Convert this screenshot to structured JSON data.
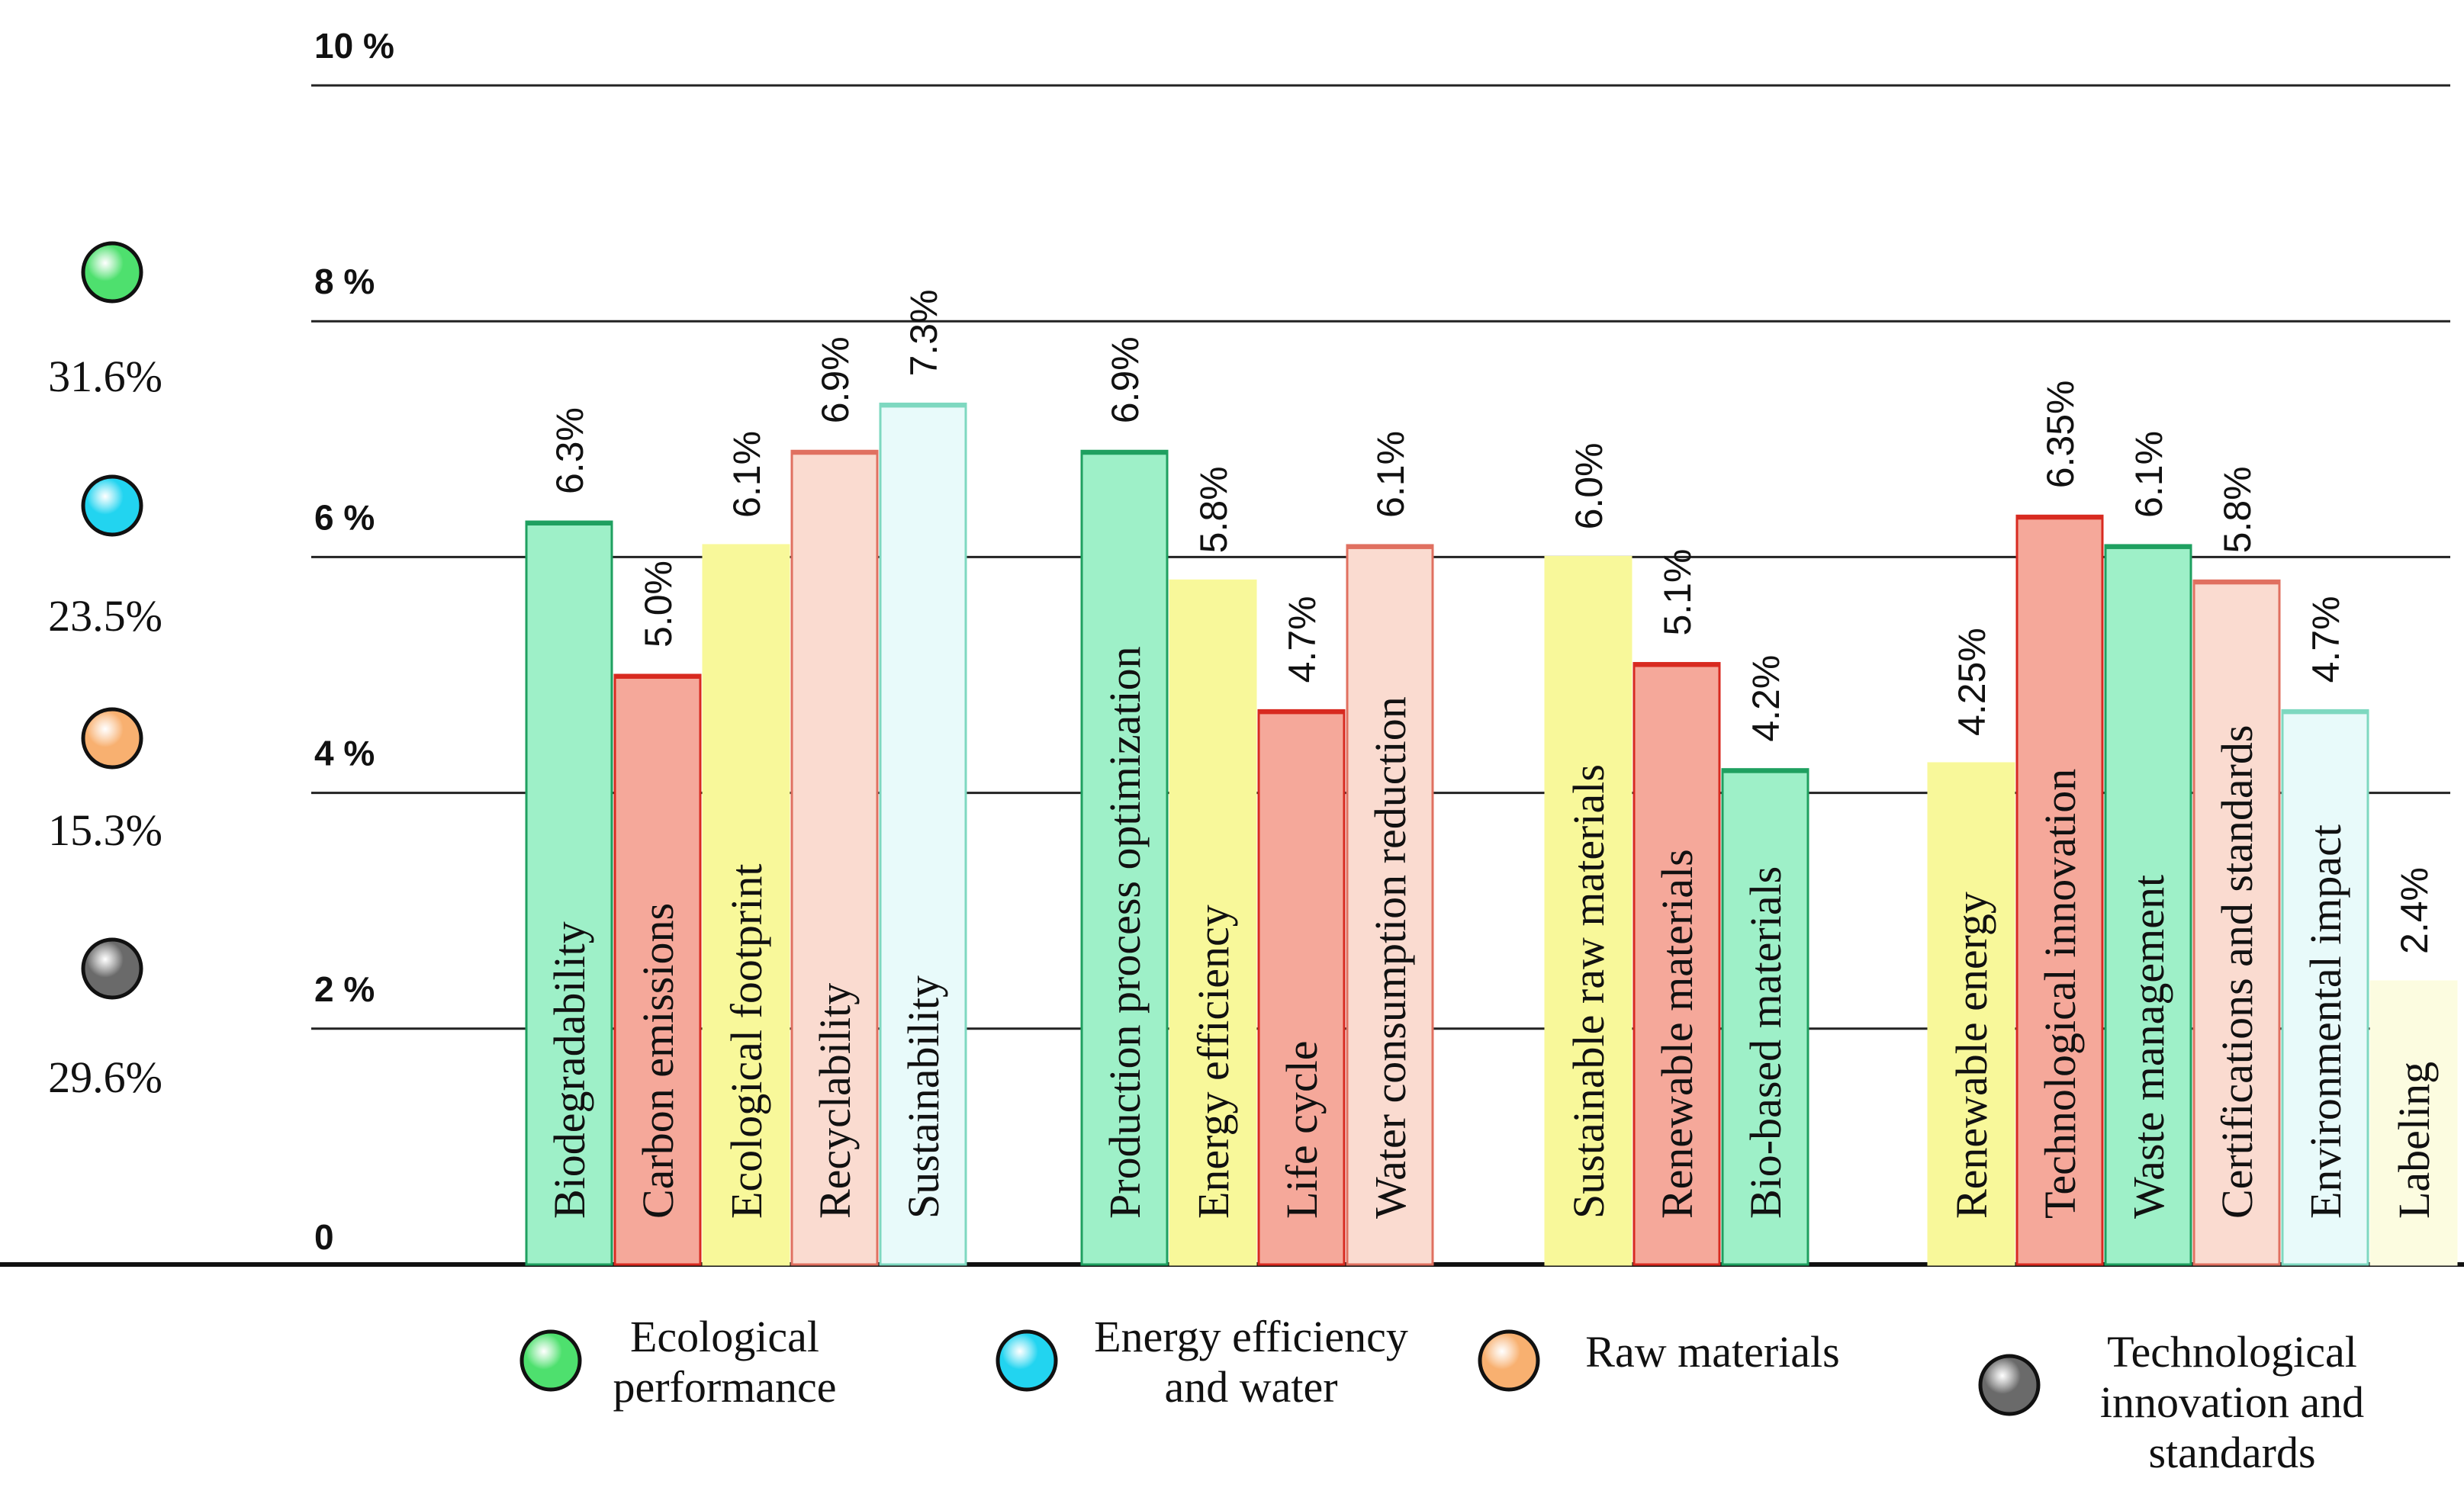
{
  "chart_data": {
    "type": "bar",
    "title": "",
    "xlabel": "",
    "ylabel": "",
    "ylim": [
      0,
      10
    ],
    "yticks": [
      0,
      2,
      4,
      6,
      8,
      10
    ],
    "ytick_labels": [
      "0",
      "2 %",
      "4 %",
      "6 %",
      "8 %",
      "10 %"
    ],
    "grid": true,
    "legend_position": "bottom",
    "groups": [
      {
        "name": "Ecological performance",
        "name_lines": [
          "Ecological",
          "performance"
        ],
        "share": "31.6%",
        "color": "#4ee06e",
        "bars": [
          {
            "label": "Biodegradability",
            "value": 6.3,
            "value_label": "6.3%",
            "fill": "#9ef0c8",
            "stroke": "#1fa060"
          },
          {
            "label": "Carbon emissions",
            "value": 5.0,
            "value_label": "5.0%",
            "fill": "#f5a89a",
            "stroke": "#d82a20"
          },
          {
            "label": "Ecological footprint",
            "value": 6.1,
            "value_label": "6.1%",
            "fill": "#f8f89a",
            "stroke": "#f8f89a"
          },
          {
            "label": "Recyclability",
            "value": 6.9,
            "value_label": "6.9%",
            "fill": "#fadbd0",
            "stroke": "#e07060"
          },
          {
            "label": "Sustainability",
            "value": 7.3,
            "value_label": "7.3%",
            "fill": "#e8fafa",
            "stroke": "#7ed8c0"
          }
        ]
      },
      {
        "name": "Energy efficiency and water",
        "name_lines": [
          "Energy efficiency",
          "and water"
        ],
        "share": "23.5%",
        "color": "#22d4f0",
        "bars": [
          {
            "label": "Production process optimization",
            "value": 6.9,
            "value_label": "6.9%",
            "fill": "#9ef0c8",
            "stroke": "#1fa060"
          },
          {
            "label": "Energy efficiency",
            "value": 5.8,
            "value_label": "5.8%",
            "fill": "#f8f89a",
            "stroke": "#f8f89a"
          },
          {
            "label": "Life cycle",
            "value": 4.7,
            "value_label": "4.7%",
            "fill": "#f5a89a",
            "stroke": "#d82a20"
          },
          {
            "label": "Water consumption reduction",
            "value": 6.1,
            "value_label": "6.1%",
            "fill": "#fadbd0",
            "stroke": "#e07060"
          }
        ]
      },
      {
        "name": "Raw materials",
        "name_lines": [
          "Raw materials"
        ],
        "share": "15.3%",
        "color": "#f8b070",
        "bars": [
          {
            "label": "Sustainable raw materials",
            "value": 6.0,
            "value_label": "6.0%",
            "fill": "#f8f89a",
            "stroke": "#f8f89a"
          },
          {
            "label": "Renewable materials",
            "value": 5.1,
            "value_label": "5.1%",
            "fill": "#f5a89a",
            "stroke": "#d82a20"
          },
          {
            "label": "Bio-based materials",
            "value": 4.2,
            "value_label": "4.2%",
            "fill": "#9ef0c8",
            "stroke": "#1fa060"
          }
        ]
      },
      {
        "name": "Technological innovation and standards",
        "name_lines": [
          "Technological",
          "innovation and",
          "standards"
        ],
        "share": "29.6%",
        "color": "#6a6a6a",
        "bars": [
          {
            "label": "Renewable energy",
            "value": 4.25,
            "value_label": "4.25%",
            "fill": "#f8f89a",
            "stroke": "#f8f89a"
          },
          {
            "label": "Technological innovation",
            "value": 6.35,
            "value_label": "6.35%",
            "fill": "#f5a89a",
            "stroke": "#d82a20"
          },
          {
            "label": "Waste management",
            "value": 6.1,
            "value_label": "6.1%",
            "fill": "#9ef0c8",
            "stroke": "#1fa060"
          },
          {
            "label": "Certifications and standards",
            "value": 5.8,
            "value_label": "5.8%",
            "fill": "#fadbd0",
            "stroke": "#e07060"
          },
          {
            "label": "Environmental impact",
            "value": 4.7,
            "value_label": "4.7%",
            "fill": "#e8fafa",
            "stroke": "#7ed8c0"
          },
          {
            "label": "Labeling",
            "value": 2.4,
            "value_label": "2.4%",
            "fill": "#fcfce0",
            "stroke": "#fcfce0"
          }
        ]
      }
    ]
  }
}
